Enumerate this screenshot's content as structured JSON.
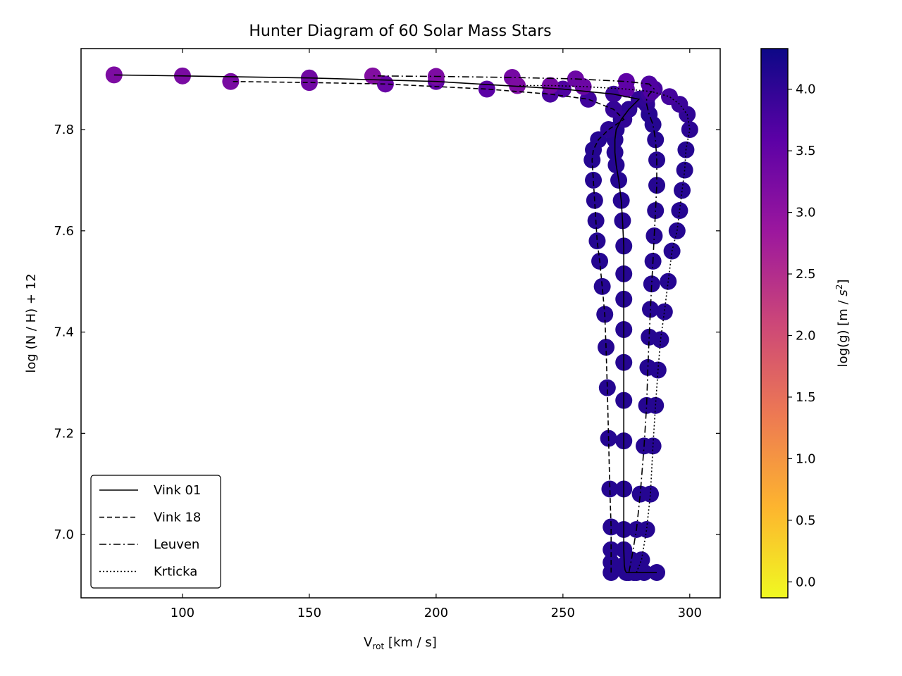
{
  "chart_data": {
    "type": "scatter",
    "title": "Hunter Diagram of 60 Solar Mass Stars",
    "xlabel": {
      "main": "V",
      "sub": "rot",
      "rest": " [km / s]"
    },
    "ylabel": "log (N / H) + 12",
    "xlim": [
      60,
      312
    ],
    "ylim": [
      6.875,
      7.96
    ],
    "xticks": [
      100,
      150,
      200,
      250,
      300
    ],
    "yticks": [
      7.0,
      7.2,
      7.4,
      7.6,
      7.8
    ],
    "xtick_labels": [
      "100",
      "150",
      "200",
      "250",
      "300"
    ],
    "ytick_labels": [
      "7.0",
      "7.2",
      "7.4",
      "7.6",
      "7.8"
    ],
    "grid": false,
    "legend_position": "lower-left",
    "colorbar": {
      "label": "log(g) [m / s2]",
      "label_main": "log(g) [m / ",
      "label_sym": "s",
      "label_sup": "2",
      "label_end": "]",
      "colormap": "plasma",
      "range": [
        -0.13,
        4.33
      ],
      "ticks": [
        0.0,
        0.5,
        1.0,
        1.5,
        2.0,
        2.5,
        3.0,
        3.5,
        4.0
      ],
      "tick_labels": [
        "0.0",
        "0.5",
        "1.0",
        "1.5",
        "2.0",
        "2.5",
        "3.0",
        "3.5",
        "4.0"
      ],
      "colors": [
        "#f0f921",
        "#fdb42f",
        "#ed7953",
        "#cc4778",
        "#9c179e",
        "#5c01a6",
        "#0d0887"
      ]
    },
    "series": [
      {
        "name": "Vink 01",
        "linestyle": "solid",
        "x": [
          287,
          282,
          278,
          275,
          274.5,
          274.2,
          274,
          274,
          274,
          274,
          274,
          274,
          274,
          274,
          274,
          274,
          273.5,
          273,
          272,
          271,
          270.5,
          270.5,
          271,
          273,
          276,
          280,
          270,
          250,
          200,
          150,
          100,
          73
        ],
        "y": [
          6.925,
          6.925,
          6.925,
          6.925,
          6.93,
          6.94,
          6.97,
          7.01,
          7.09,
          7.185,
          7.265,
          7.34,
          7.405,
          7.465,
          7.515,
          7.57,
          7.62,
          7.66,
          7.7,
          7.73,
          7.755,
          7.78,
          7.8,
          7.82,
          7.84,
          7.86,
          7.87,
          7.88,
          7.895,
          7.902,
          7.906,
          7.908
        ],
        "logg": [
          4.1,
          4.1,
          4.1,
          4.1,
          4.1,
          4.1,
          4.1,
          4.1,
          4.1,
          4.1,
          4.1,
          4.1,
          4.1,
          4.1,
          4.1,
          4.1,
          4.1,
          4.1,
          4.1,
          4.1,
          4.1,
          4.1,
          4.1,
          4.1,
          4.05,
          4.0,
          3.9,
          3.7,
          3.5,
          3.35,
          3.25,
          3.2
        ]
      },
      {
        "name": "Vink 18",
        "linestyle": "dashed",
        "x": [
          269,
          269,
          269,
          269,
          268.5,
          268,
          267.5,
          267,
          266.5,
          265.5,
          264.5,
          263.5,
          263,
          262.5,
          262,
          261.5,
          262,
          264,
          268,
          274,
          270,
          260,
          245,
          220,
          180,
          150,
          119
        ],
        "y": [
          6.925,
          6.945,
          6.97,
          7.015,
          7.09,
          7.19,
          7.29,
          7.37,
          7.435,
          7.49,
          7.54,
          7.58,
          7.62,
          7.66,
          7.7,
          7.74,
          7.76,
          7.78,
          7.8,
          7.82,
          7.84,
          7.86,
          7.87,
          7.88,
          7.89,
          7.893,
          7.895
        ],
        "logg": [
          4.1,
          4.1,
          4.1,
          4.1,
          4.1,
          4.1,
          4.1,
          4.1,
          4.1,
          4.1,
          4.1,
          4.1,
          4.1,
          4.1,
          4.1,
          4.1,
          4.1,
          4.1,
          4.05,
          4.0,
          3.95,
          3.85,
          3.75,
          3.6,
          3.45,
          3.35,
          3.25
        ]
      },
      {
        "name": "Leuven",
        "linestyle": "dashdot",
        "x": [
          276,
          277,
          279,
          280.5,
          282,
          283,
          283.5,
          284,
          284.5,
          285,
          285.5,
          286,
          286.5,
          287,
          287,
          286.5,
          285.5,
          284,
          283,
          283,
          284,
          286,
          284,
          275,
          255,
          230,
          200,
          175
        ],
        "y": [
          6.925,
          6.95,
          7.01,
          7.08,
          7.175,
          7.255,
          7.33,
          7.39,
          7.445,
          7.495,
          7.54,
          7.59,
          7.64,
          7.69,
          7.74,
          7.78,
          7.81,
          7.83,
          7.85,
          7.86,
          7.87,
          7.88,
          7.89,
          7.895,
          7.9,
          7.903,
          7.905,
          7.906
        ],
        "logg": [
          4.1,
          4.1,
          4.1,
          4.1,
          4.1,
          4.1,
          4.1,
          4.1,
          4.1,
          4.1,
          4.1,
          4.1,
          4.1,
          4.1,
          4.1,
          4.1,
          4.1,
          4.1,
          4.05,
          4.0,
          3.9,
          3.8,
          3.7,
          3.55,
          3.4,
          3.3,
          3.2,
          3.15
        ]
      },
      {
        "name": "Krticka",
        "linestyle": "dotted",
        "x": [
          279,
          281,
          283,
          284.5,
          285.5,
          286.5,
          287.5,
          288.5,
          290,
          291.5,
          293,
          295,
          296,
          297,
          298,
          298.5,
          300,
          299,
          296,
          292,
          285,
          275,
          258,
          245,
          232
        ],
        "y": [
          6.925,
          6.95,
          7.01,
          7.08,
          7.175,
          7.255,
          7.325,
          7.385,
          7.44,
          7.5,
          7.56,
          7.6,
          7.64,
          7.68,
          7.72,
          7.76,
          7.8,
          7.83,
          7.85,
          7.865,
          7.875,
          7.88,
          7.885,
          7.887,
          7.887
        ],
        "logg": [
          4.1,
          4.1,
          4.1,
          4.1,
          4.1,
          4.1,
          4.1,
          4.1,
          4.1,
          4.1,
          4.1,
          4.1,
          4.1,
          4.1,
          4.1,
          4.1,
          4.05,
          4.0,
          3.9,
          3.8,
          3.7,
          3.55,
          3.4,
          3.3,
          3.2
        ]
      }
    ]
  }
}
